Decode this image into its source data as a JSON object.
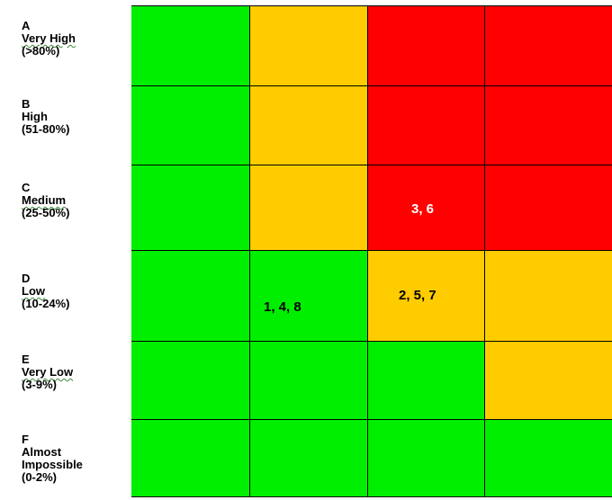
{
  "rows": [
    {
      "letter": "A",
      "name": "Very High",
      "range": "(>80%)",
      "cells": [
        "#00ee00",
        "#ffcc00",
        "#ff0000",
        "#ff0000"
      ]
    },
    {
      "letter": "B",
      "name": "High",
      "range": "(51-80%)",
      "cells": [
        "#00ee00",
        "#ffcc00",
        "#ff0000",
        "#ff0000"
      ]
    },
    {
      "letter": "C",
      "name": "Medium",
      "range": "(25-50%)",
      "cells": [
        "#00ee00",
        "#ffcc00",
        "#ff0000",
        "#ff0000"
      ]
    },
    {
      "letter": "D",
      "name": "Low",
      "range": "(10-24%)",
      "cells": [
        "#00ee00",
        "#00ee00",
        "#ffcc00",
        "#ffcc00"
      ]
    },
    {
      "letter": "E",
      "name": "Very Low",
      "range": "(3-9%)",
      "cells": [
        "#00ee00",
        "#00ee00",
        "#00ee00",
        "#ffcc00"
      ]
    },
    {
      "letter": "F",
      "name": "Almost Impossible",
      "range": "(0-2%)",
      "cells": [
        "#00ee00",
        "#00ee00",
        "#00ee00",
        "#00ee00"
      ]
    }
  ],
  "markers": [
    {
      "text": "3, 6",
      "row": 2,
      "col": 2,
      "color": "#ffffff"
    },
    {
      "text": "1, 4, 8",
      "row": 3,
      "col": 1,
      "color": "#000000"
    },
    {
      "text": "2, 5, 7",
      "row": 3,
      "col": 2,
      "color": "#000000"
    }
  ]
}
